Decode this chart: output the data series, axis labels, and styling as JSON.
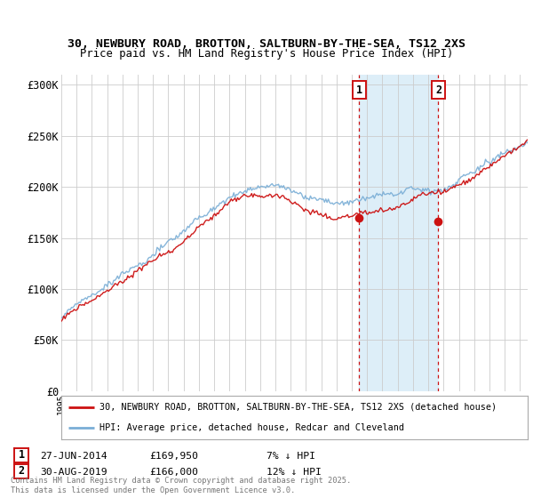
{
  "title_line1": "30, NEWBURY ROAD, BROTTON, SALTBURN-BY-THE-SEA, TS12 2XS",
  "title_line2": "Price paid vs. HM Land Registry's House Price Index (HPI)",
  "hpi_color": "#7aaed6",
  "price_color": "#cc1111",
  "shaded_color": "#ddeef8",
  "bg_color": "#ffffff",
  "plot_bg": "#ffffff",
  "grid_color": "#cccccc",
  "ylim": [
    0,
    310000
  ],
  "yticks": [
    0,
    50000,
    100000,
    150000,
    200000,
    250000,
    300000
  ],
  "ytick_labels": [
    "£0",
    "£50K",
    "£100K",
    "£150K",
    "£200K",
    "£250K",
    "£300K"
  ],
  "xstart": 1995,
  "xend": 2025.5,
  "sale1_year": 2014.49,
  "sale1_price": 169950,
  "sale2_year": 2019.66,
  "sale2_price": 166000,
  "legend_line1": "30, NEWBURY ROAD, BROTTON, SALTBURN-BY-THE-SEA, TS12 2XS (detached house)",
  "legend_line2": "HPI: Average price, detached house, Redcar and Cleveland",
  "info1_date": "27-JUN-2014",
  "info1_price": "£169,950",
  "info1_hpi": "7% ↓ HPI",
  "info2_date": "30-AUG-2019",
  "info2_price": "£166,000",
  "info2_hpi": "12% ↓ HPI",
  "footer": "Contains HM Land Registry data © Crown copyright and database right 2025.\nThis data is licensed under the Open Government Licence v3.0."
}
